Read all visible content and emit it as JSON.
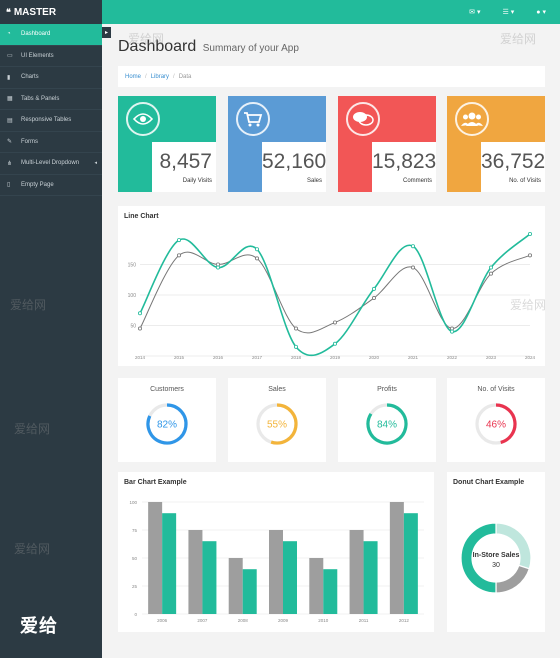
{
  "brand": {
    "name": "MASTER"
  },
  "topbar": {
    "icons": [
      "envelope-icon",
      "tasks-icon",
      "user-icon"
    ],
    "caret": "▾"
  },
  "sidebar": {
    "items": [
      {
        "label": "Dashboard",
        "icon": "dashboard-icon",
        "active": true
      },
      {
        "label": "UI Elements",
        "icon": "desktop-icon"
      },
      {
        "label": "Charts",
        "icon": "bar-chart-icon"
      },
      {
        "label": "Tabs & Panels",
        "icon": "qrcode-icon"
      },
      {
        "label": "Responsive Tables",
        "icon": "table-icon"
      },
      {
        "label": "Forms",
        "icon": "edit-icon"
      },
      {
        "label": "Multi-Level Dropdown",
        "icon": "sitemap-icon",
        "caret": "◂"
      },
      {
        "label": "Empty Page",
        "icon": "file-icon"
      }
    ],
    "watermark": "爱给"
  },
  "header": {
    "title": "Dashboard",
    "subtitle": "Summary of your App"
  },
  "breadcrumb": {
    "home": "Home",
    "library": "Library",
    "current": "Data",
    "sep": "/"
  },
  "stats": [
    {
      "value": "8,457",
      "label": "Daily Visits",
      "color": "#22bb9b",
      "icon": "eye-icon"
    },
    {
      "value": "52,160",
      "label": "Sales",
      "color": "#5b9bd5",
      "icon": "shopping-cart-icon"
    },
    {
      "value": "15,823",
      "label": "Comments",
      "color": "#f25656",
      "icon": "comments-icon"
    },
    {
      "value": "36,752",
      "label": "No. of Visits",
      "color": "#f0a640",
      "icon": "users-icon"
    }
  ],
  "line_chart": {
    "title": "Line Chart"
  },
  "gauges": [
    {
      "name": "Customers",
      "percent": 82,
      "label": "82%",
      "color": "#2f96e8"
    },
    {
      "name": "Sales",
      "percent": 55,
      "label": "55%",
      "color": "#f3b43a"
    },
    {
      "name": "Profits",
      "percent": 84,
      "label": "84%",
      "color": "#22bb9b"
    },
    {
      "name": "No. of Visits",
      "percent": 46,
      "label": "46%",
      "color": "#e9344f"
    }
  ],
  "bar_chart": {
    "title": "Bar Chart Example"
  },
  "donut_chart": {
    "title": "Donut Chart Example",
    "center_label": "In-Store Sales",
    "center_value": "30"
  },
  "watermark_text": "爱给网",
  "chart_data": [
    {
      "type": "line",
      "x": [
        "2014",
        "2015",
        "2016",
        "2017",
        "2018",
        "2019",
        "2020",
        "2021",
        "2022",
        "2023",
        "2024"
      ],
      "yticks": [
        "150",
        "100",
        "50"
      ],
      "ylim": [
        0,
        200
      ],
      "grid": true,
      "series": [
        {
          "values": [
            70,
            190,
            145,
            175,
            15,
            20,
            110,
            180,
            40,
            145,
            200
          ],
          "color": "#22bb9b"
        },
        {
          "values": [
            45,
            165,
            150,
            160,
            45,
            55,
            95,
            145,
            45,
            135,
            165
          ],
          "color": "#777777"
        }
      ]
    },
    {
      "type": "bar",
      "categories": [
        "2006",
        "2007",
        "2008",
        "2009",
        "2010",
        "2011",
        "2012"
      ],
      "yticks": [
        "100",
        "75",
        "50",
        "25",
        "0"
      ],
      "ylim": [
        0,
        100
      ],
      "grid": true,
      "series": [
        {
          "values": [
            100,
            75,
            50,
            75,
            50,
            75,
            100
          ],
          "color": "#9e9e9e"
        },
        {
          "values": [
            90,
            65,
            40,
            65,
            40,
            65,
            90
          ],
          "color": "#22bb9b"
        }
      ]
    },
    {
      "type": "pie",
      "slices": [
        {
          "label": "In-Store Sales",
          "value": 30,
          "color": "#bfe6dd"
        },
        {
          "value": 20,
          "color": "#9e9e9e"
        },
        {
          "value": 50,
          "color": "#22bb9b"
        }
      ]
    }
  ]
}
